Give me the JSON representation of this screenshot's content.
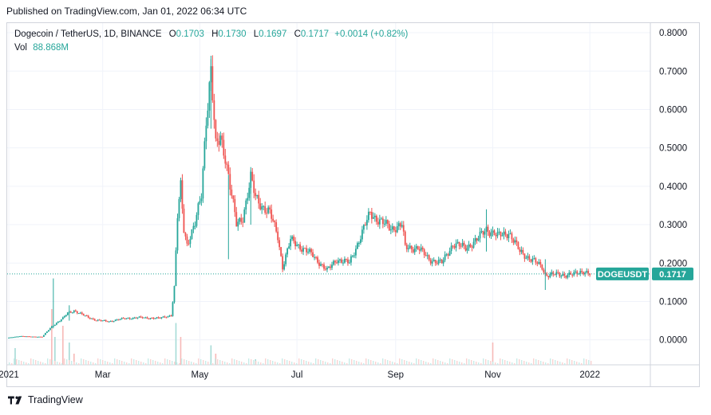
{
  "published_text": "Published on TradingView.com, Jan 01, 2022 06:34 UTC",
  "legend": {
    "symbol": "Dogecoin / TetherUS, 1D, BINANCE",
    "o_label": "O",
    "o_value": "0.1703",
    "h_label": "H",
    "h_value": "0.1730",
    "l_label": "L",
    "l_value": "0.1697",
    "c_label": "C",
    "c_value": "0.1717",
    "change": "+0.0014 (+0.82%)",
    "vol_label": "Vol",
    "vol_value": "88.868M"
  },
  "footer": {
    "brand": "TradingView"
  },
  "colors": {
    "up": "#26a69a",
    "down": "#ef5350",
    "grid": "#f0f3fa",
    "border": "#d1d4dc",
    "price_line": "#26a69a"
  },
  "chart_data": {
    "type": "candlestick",
    "symbol": "DOGEUSDT",
    "last_price": "0.1717",
    "ylim": [
      -0.065,
      0.825
    ],
    "y_ticks": [
      "0.8000",
      "0.7000",
      "0.6000",
      "0.5000",
      "0.4000",
      "0.3000",
      "0.2000",
      "0.1000",
      "0.0000"
    ],
    "y_tick_values": [
      0.8,
      0.7,
      0.6,
      0.5,
      0.4,
      0.3,
      0.2,
      0.1,
      0.0
    ],
    "x_ticks": [
      "2021",
      "Mar",
      "May",
      "Jul",
      "Sep",
      "Nov",
      "2022"
    ],
    "x_tick_dates": [
      "2021-01-01",
      "2021-03-01",
      "2021-05-01",
      "2021-07-01",
      "2021-09-01",
      "2021-11-01",
      "2022-01-01"
    ],
    "x_range": [
      "2020-12-31",
      "2022-02-08"
    ],
    "grid": true,
    "series_close": [
      [
        "2021-01-01",
        0.0057
      ],
      [
        "2021-01-08",
        0.0098
      ],
      [
        "2021-01-15",
        0.0085
      ],
      [
        "2021-01-22",
        0.008
      ],
      [
        "2021-01-28",
        0.035
      ],
      [
        "2021-02-04",
        0.056
      ],
      [
        "2021-02-07",
        0.07
      ],
      [
        "2021-02-11",
        0.076
      ],
      [
        "2021-02-18",
        0.062
      ],
      [
        "2021-02-25",
        0.051
      ],
      [
        "2021-03-05",
        0.048
      ],
      [
        "2021-03-15",
        0.056
      ],
      [
        "2021-03-25",
        0.058
      ],
      [
        "2021-04-05",
        0.056
      ],
      [
        "2021-04-13",
        0.064
      ],
      [
        "2021-04-15",
        0.135
      ],
      [
        "2021-04-17",
        0.32
      ],
      [
        "2021-04-19",
        0.4
      ],
      [
        "2021-04-21",
        0.29
      ],
      [
        "2021-04-23",
        0.25
      ],
      [
        "2021-04-28",
        0.3
      ],
      [
        "2021-05-02",
        0.38
      ],
      [
        "2021-05-05",
        0.58
      ],
      [
        "2021-05-08",
        0.7
      ],
      [
        "2021-05-11",
        0.5
      ],
      [
        "2021-05-14",
        0.53
      ],
      [
        "2021-05-17",
        0.48
      ],
      [
        "2021-05-20",
        0.4
      ],
      [
        "2021-05-24",
        0.3
      ],
      [
        "2021-05-28",
        0.32
      ],
      [
        "2021-06-02",
        0.42
      ],
      [
        "2021-06-05",
        0.37
      ],
      [
        "2021-06-09",
        0.35
      ],
      [
        "2021-06-14",
        0.33
      ],
      [
        "2021-06-19",
        0.27
      ],
      [
        "2021-06-22",
        0.19
      ],
      [
        "2021-06-27",
        0.26
      ],
      [
        "2021-07-04",
        0.24
      ],
      [
        "2021-07-11",
        0.22
      ],
      [
        "2021-07-20",
        0.18
      ],
      [
        "2021-07-26",
        0.21
      ],
      [
        "2021-08-03",
        0.2
      ],
      [
        "2021-08-10",
        0.27
      ],
      [
        "2021-08-16",
        0.33
      ],
      [
        "2021-08-22",
        0.31
      ],
      [
        "2021-08-29",
        0.29
      ],
      [
        "2021-09-05",
        0.3
      ],
      [
        "2021-09-07",
        0.24
      ],
      [
        "2021-09-15",
        0.24
      ],
      [
        "2021-09-22",
        0.21
      ],
      [
        "2021-09-30",
        0.2
      ],
      [
        "2021-10-07",
        0.25
      ],
      [
        "2021-10-15",
        0.24
      ],
      [
        "2021-10-22",
        0.26
      ],
      [
        "2021-10-28",
        0.29
      ],
      [
        "2021-11-04",
        0.27
      ],
      [
        "2021-11-11",
        0.28
      ],
      [
        "2021-11-18",
        0.23
      ],
      [
        "2021-11-25",
        0.21
      ],
      [
        "2021-12-02",
        0.19
      ],
      [
        "2021-12-04",
        0.17
      ],
      [
        "2021-12-10",
        0.17
      ],
      [
        "2021-12-17",
        0.17
      ],
      [
        "2021-12-22",
        0.17
      ],
      [
        "2021-12-28",
        0.18
      ],
      [
        "2022-01-01",
        0.1717
      ]
    ],
    "volume_bars": [
      [
        "2021-01-05",
        0.3
      ],
      [
        "2021-01-28",
        1.0
      ],
      [
        "2021-01-30",
        0.5
      ],
      [
        "2021-02-04",
        0.7
      ],
      [
        "2021-02-08",
        0.4
      ],
      [
        "2021-02-11",
        0.2
      ],
      [
        "2021-04-16",
        0.75
      ],
      [
        "2021-04-19",
        0.5
      ],
      [
        "2021-05-08",
        0.35
      ],
      [
        "2021-05-11",
        0.2
      ],
      [
        "2021-06-05",
        0.1
      ],
      [
        "2021-11-01",
        0.4
      ]
    ]
  }
}
